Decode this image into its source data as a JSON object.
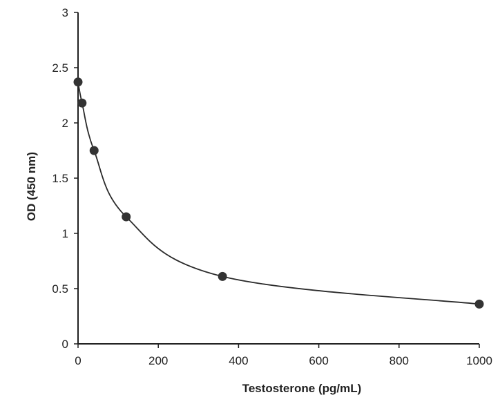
{
  "chart_data": {
    "type": "scatter",
    "title": "",
    "xlabel": "Testosterone (pg/mL)",
    "ylabel": "OD (450 nm)",
    "xlim": [
      0,
      1000
    ],
    "ylim": [
      0,
      3
    ],
    "x_ticks": [
      "0",
      "200",
      "400",
      "600",
      "800",
      "1000"
    ],
    "y_ticks": [
      "0",
      "0.5",
      "1",
      "1.5",
      "2",
      "2.5",
      "3"
    ],
    "grid": false,
    "legend": "none",
    "series": [
      {
        "x": [
          0,
          10,
          40,
          120,
          360,
          1000
        ],
        "y": [
          2.37,
          2.18,
          1.75,
          1.15,
          0.61,
          0.36
        ],
        "fit_curve": true
      }
    ],
    "colors": {
      "point": "#333333",
      "curve": "#2a2a2a",
      "axis": "#1f1f1f"
    }
  }
}
